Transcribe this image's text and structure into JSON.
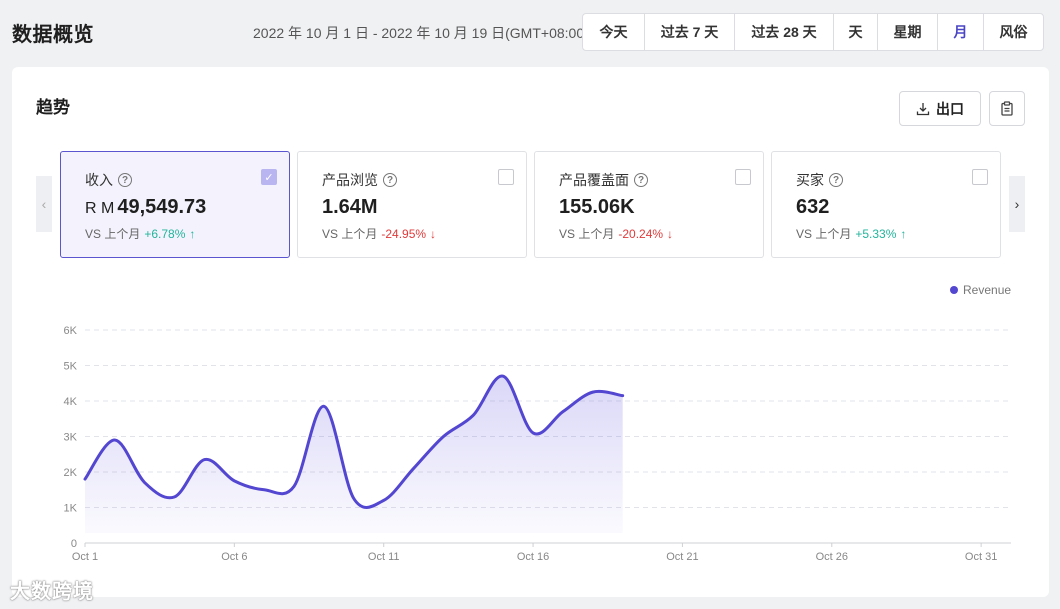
{
  "header": {
    "title": "数据概览",
    "date_range": "2022 年 10 月 1 日 - 2022 年 10 月 19 日(GMT+08:00)",
    "ranges": [
      {
        "label": "今天",
        "active": false
      },
      {
        "label": "过去 7 天",
        "active": false
      },
      {
        "label": "过去 28 天",
        "active": false
      },
      {
        "label": "天",
        "active": false
      },
      {
        "label": "星期",
        "active": false
      },
      {
        "label": "月",
        "active": true
      },
      {
        "label": "风俗",
        "active": false
      }
    ]
  },
  "trend": {
    "title": "趋势",
    "export_label": "出口"
  },
  "metrics": [
    {
      "label": "收入",
      "currency": "R M",
      "value": "49,549.73",
      "compare_prefix": "VS 上个月",
      "change": "+6.78%",
      "direction": "up",
      "selected": true
    },
    {
      "label": "产品浏览",
      "currency": "",
      "value": "1.64M",
      "compare_prefix": "VS 上个月",
      "change": "-24.95%",
      "direction": "down",
      "selected": false
    },
    {
      "label": "产品覆盖面",
      "currency": "",
      "value": "155.06K",
      "compare_prefix": "VS 上个月",
      "change": "-20.24%",
      "direction": "down",
      "selected": false
    },
    {
      "label": "买家",
      "currency": "",
      "value": "632",
      "compare_prefix": "VS 上个月",
      "change": "+5.33%",
      "direction": "up",
      "selected": false
    }
  ],
  "watermark": "大数跨境",
  "chart_data": {
    "type": "area",
    "legend": "Revenue",
    "legend_position": "top-right",
    "color": "#5346d0",
    "grid": true,
    "ylim": [
      0,
      6000
    ],
    "yticks": [
      "0",
      "1K",
      "2K",
      "3K",
      "4K",
      "5K",
      "6K"
    ],
    "ytick_values": [
      0,
      1000,
      2000,
      3000,
      4000,
      5000,
      6000
    ],
    "xlim": [
      1,
      32
    ],
    "xticks": [
      "Oct 1",
      "Oct 6",
      "Oct 11",
      "Oct 16",
      "Oct 21",
      "Oct 26",
      "Oct 31"
    ],
    "xtick_values": [
      1,
      6,
      11,
      16,
      21,
      26,
      31
    ],
    "series": [
      {
        "name": "Revenue",
        "x": [
          1,
          2,
          3,
          4,
          5,
          6,
          7,
          8,
          9,
          10,
          11,
          12,
          13,
          14,
          15,
          16,
          17,
          18,
          19
        ],
        "values": [
          1800,
          2900,
          1700,
          1300,
          2350,
          1750,
          1500,
          1600,
          3850,
          1250,
          1200,
          2100,
          3000,
          3600,
          4700,
          3100,
          3700,
          4250,
          4150
        ]
      }
    ]
  }
}
